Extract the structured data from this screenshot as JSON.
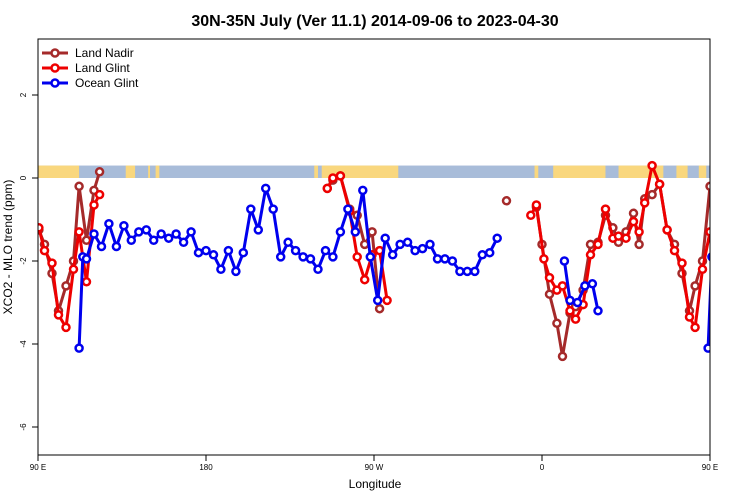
{
  "chart_data": {
    "type": "line",
    "title": "30N-35N July (Ver 11.1)   2014-09-06 to 2023-04-30",
    "xlabel": "Longitude",
    "ylabel": "XCO2 - MLO trend (ppm)",
    "xlim": [
      90,
      450
    ],
    "ylim": [
      -7.2,
      3.5
    ],
    "x_ticks": [
      {
        "value": 90,
        "label": "90 E"
      },
      {
        "value": 180,
        "label": "180"
      },
      {
        "value": 270,
        "label": "90 W"
      },
      {
        "value": 360,
        "label": "0"
      },
      {
        "value": 450,
        "label": "90 E"
      },
      {
        "value": 540,
        "label": "180"
      }
    ],
    "y_ticks": [
      {
        "value": 2,
        "label": "2"
      },
      {
        "value": 0,
        "label": "0"
      },
      {
        "value": -2,
        "label": "-2"
      },
      {
        "value": -4,
        "label": "-4"
      },
      {
        "value": -6,
        "label": "-6"
      }
    ],
    "legend_position": "top-left",
    "land_ocean_strip": {
      "y_bottom": 0,
      "y_top": 0.3,
      "land_color": "#f9d77e",
      "ocean_color": "#a8bcd9",
      "land_segments": [
        [
          90,
          112
        ],
        [
          137,
          142
        ],
        [
          149,
          150
        ],
        [
          153,
          155
        ],
        [
          238,
          240
        ],
        [
          242,
          283
        ],
        [
          356,
          358
        ],
        [
          366,
          394
        ],
        [
          401,
          425
        ],
        [
          432,
          438
        ],
        [
          444,
          448
        ]
      ]
    },
    "series": [
      {
        "name": "Land Nadir",
        "color": "#a52a2a",
        "segments": [
          [
            [
              90.5,
              -1.25
            ],
            [
              93.5,
              -1.6
            ],
            [
              97.5,
              -2.3
            ],
            [
              101,
              -3.2
            ],
            [
              105,
              -2.6
            ],
            [
              109,
              -2.0
            ],
            [
              112,
              -0.2
            ],
            [
              116,
              -1.5
            ],
            [
              120,
              -0.3
            ],
            [
              123,
              0.15
            ]
          ],
          [
            [
              245,
              -0.25
            ],
            [
              248,
              -0.05
            ],
            [
              252,
              0.05
            ],
            [
              257,
              -0.75
            ],
            [
              261,
              -0.9
            ],
            [
              265,
              -1.6
            ],
            [
              269,
              -1.3
            ],
            [
              273,
              -3.15
            ]
          ],
          [
            [
              341,
              -0.55
            ]
          ],
          [
            [
              357,
              -0.7
            ],
            [
              360,
              -1.6
            ],
            [
              364,
              -2.8
            ],
            [
              368,
              -3.5
            ],
            [
              371,
              -4.3
            ],
            [
              375,
              -3.25
            ],
            [
              378,
              -3.1
            ],
            [
              382,
              -2.7
            ],
            [
              386,
              -1.6
            ],
            [
              390,
              -1.55
            ],
            [
              394,
              -0.9
            ],
            [
              398,
              -1.2
            ],
            [
              401,
              -1.55
            ],
            [
              405,
              -1.3
            ],
            [
              409,
              -0.85
            ],
            [
              412,
              -1.6
            ],
            [
              415,
              -0.5
            ],
            [
              419,
              -0.4
            ],
            [
              423,
              -0.15
            ],
            [
              427,
              -1.25
            ],
            [
              431,
              -1.6
            ],
            [
              435,
              -2.3
            ],
            [
              439,
              -3.2
            ],
            [
              442,
              -2.6
            ],
            [
              446,
              -2.0
            ],
            [
              450,
              -0.2
            ]
          ]
        ]
      },
      {
        "name": "Land Glint",
        "color": "#ee0000",
        "segments": [
          [
            [
              90.5,
              -1.2
            ],
            [
              93.5,
              -1.75
            ],
            [
              97.5,
              -2.05
            ],
            [
              101,
              -3.3
            ],
            [
              105,
              -3.6
            ],
            [
              109,
              -2.2
            ],
            [
              112,
              -1.3
            ],
            [
              116,
              -2.5
            ],
            [
              120,
              -0.65
            ],
            [
              123,
              -0.4
            ]
          ],
          [
            [
              245,
              -0.25
            ],
            [
              248,
              0.0
            ],
            [
              252,
              0.05
            ],
            [
              257,
              -0.8
            ],
            [
              261,
              -1.9
            ],
            [
              265,
              -2.45
            ],
            [
              269,
              -1.85
            ],
            [
              273,
              -1.75
            ],
            [
              277,
              -2.95
            ]
          ],
          [
            [
              354,
              -0.9
            ],
            [
              357,
              -0.65
            ],
            [
              361,
              -1.95
            ],
            [
              364,
              -2.4
            ],
            [
              368,
              -2.7
            ],
            [
              371,
              -2.6
            ],
            [
              375,
              -3.2
            ],
            [
              378,
              -3.4
            ],
            [
              382,
              -3.05
            ],
            [
              386,
              -1.85
            ],
            [
              390,
              -1.6
            ],
            [
              394,
              -0.75
            ],
            [
              398,
              -1.45
            ],
            [
              401,
              -1.4
            ],
            [
              405,
              -1.45
            ],
            [
              409,
              -1.05
            ],
            [
              412,
              -1.3
            ],
            [
              415,
              -0.6
            ],
            [
              419,
              0.3
            ],
            [
              423,
              -0.15
            ],
            [
              427,
              -1.25
            ],
            [
              431,
              -1.75
            ],
            [
              435,
              -2.05
            ],
            [
              439,
              -3.35
            ],
            [
              442,
              -3.6
            ],
            [
              446,
              -2.2
            ],
            [
              450,
              -1.3
            ]
          ]
        ]
      },
      {
        "name": "Ocean Glint",
        "color": "#0000ee",
        "segments": [
          [
            [
              112,
              -4.1
            ],
            [
              114,
              -1.9
            ],
            [
              116,
              -1.95
            ],
            [
              120,
              -1.35
            ],
            [
              124,
              -1.65
            ],
            [
              128,
              -1.1
            ],
            [
              132,
              -1.65
            ],
            [
              136,
              -1.15
            ],
            [
              140,
              -1.5
            ],
            [
              144,
              -1.3
            ],
            [
              148,
              -1.25
            ],
            [
              152,
              -1.5
            ],
            [
              156,
              -1.35
            ],
            [
              160,
              -1.45
            ],
            [
              164,
              -1.35
            ],
            [
              168,
              -1.55
            ],
            [
              172,
              -1.3
            ],
            [
              176,
              -1.8
            ],
            [
              180,
              -1.75
            ],
            [
              184,
              -1.85
            ],
            [
              188,
              -2.2
            ],
            [
              192,
              -1.75
            ],
            [
              196,
              -2.25
            ],
            [
              200,
              -1.8
            ],
            [
              204,
              -0.75
            ],
            [
              208,
              -1.25
            ],
            [
              212,
              -0.25
            ],
            [
              216,
              -0.75
            ],
            [
              220,
              -1.9
            ],
            [
              224,
              -1.55
            ],
            [
              228,
              -1.75
            ],
            [
              232,
              -1.9
            ],
            [
              236,
              -1.95
            ],
            [
              240,
              -2.2
            ],
            [
              244,
              -1.75
            ],
            [
              248,
              -1.9
            ],
            [
              252,
              -1.3
            ],
            [
              256,
              -0.75
            ],
            [
              260,
              -1.3
            ],
            [
              264,
              -0.3
            ],
            [
              268,
              -1.9
            ],
            [
              272,
              -2.95
            ],
            [
              276,
              -1.45
            ],
            [
              280,
              -1.85
            ],
            [
              284,
              -1.6
            ],
            [
              288,
              -1.55
            ],
            [
              292,
              -1.75
            ],
            [
              296,
              -1.7
            ],
            [
              300,
              -1.6
            ],
            [
              304,
              -1.95
            ],
            [
              308,
              -1.95
            ],
            [
              312,
              -2.0
            ],
            [
              316,
              -2.25
            ],
            [
              320,
              -2.25
            ],
            [
              324,
              -2.25
            ],
            [
              328,
              -1.85
            ],
            [
              332,
              -1.8
            ],
            [
              336,
              -1.45
            ]
          ],
          [
            [
              372,
              -2.0
            ],
            [
              375,
              -2.95
            ],
            [
              379,
              -3.0
            ],
            [
              383,
              -2.6
            ],
            [
              387,
              -2.55
            ],
            [
              390,
              -3.2
            ]
          ],
          [
            [
              449,
              -4.1
            ],
            [
              451,
              -1.9
            ],
            [
              453,
              -1.95
            ]
          ]
        ]
      }
    ]
  }
}
